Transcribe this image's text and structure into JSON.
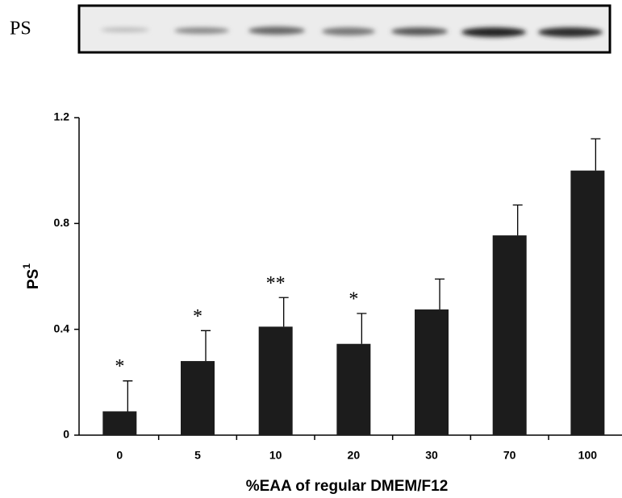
{
  "blot": {
    "label": "PS"
  },
  "chart_data": {
    "type": "bar",
    "x_label": "%EAA of regular DMEM/F12",
    "y_label": "PS",
    "y_label_superscript": "1",
    "categories": [
      "0",
      "5",
      "10",
      "20",
      "30",
      "70",
      "100"
    ],
    "values": [
      0.09,
      0.28,
      0.41,
      0.345,
      0.475,
      0.755,
      1.0
    ],
    "errors": [
      0.115,
      0.115,
      0.11,
      0.115,
      0.115,
      0.115,
      0.12
    ],
    "annotations": [
      "*",
      "*",
      "**",
      "*",
      null,
      null,
      null
    ],
    "color": "#1c1c1c",
    "ylim": [
      0,
      1.2
    ],
    "yticks": [
      0,
      0.4,
      0.8,
      1.2
    ]
  }
}
